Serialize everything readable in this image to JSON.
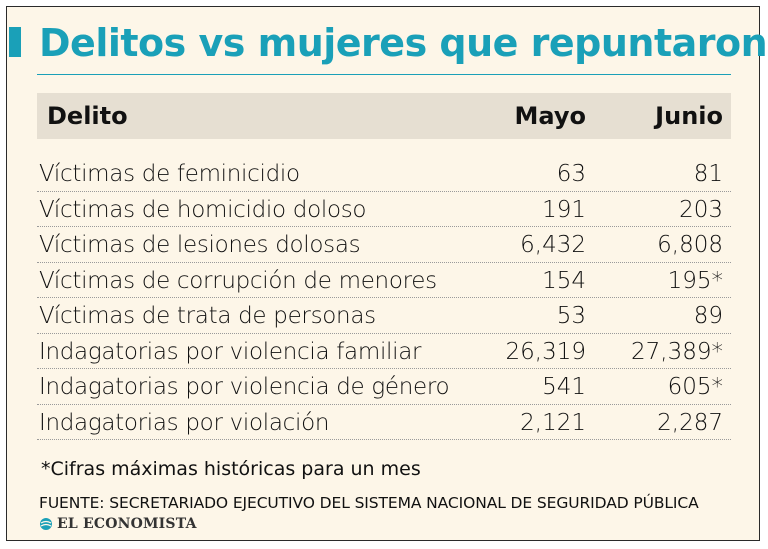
{
  "title": "Delitos vs mujeres que repuntaron",
  "colors": {
    "accent": "#1aa0b8",
    "background": "#fdf6e8",
    "header_bg": "#e6dfd2"
  },
  "table": {
    "headers": {
      "delito": "Delito",
      "mayo": "Mayo",
      "junio": "Junio"
    },
    "rows": [
      {
        "delito": "Víctimas de feminicidio",
        "mayo": "63",
        "junio": "81"
      },
      {
        "delito": "Víctimas de homicidio doloso",
        "mayo": "191",
        "junio": "203"
      },
      {
        "delito": "Víctimas de lesiones dolosas",
        "mayo": "6,432",
        "junio": "6,808"
      },
      {
        "delito": "Víctimas de corrupción de menores",
        "mayo": "154",
        "junio": "195*"
      },
      {
        "delito": "Víctimas de trata de personas",
        "mayo": "53",
        "junio": "89"
      },
      {
        "delito": "Indagatorias por violencia familiar",
        "mayo": "26,319",
        "junio": "27,389*"
      },
      {
        "delito": "Indagatorias por violencia de género",
        "mayo": "541",
        "junio": "605*"
      },
      {
        "delito": "Indagatorias por violación",
        "mayo": "2,121",
        "junio": "2,287"
      }
    ]
  },
  "note": "*Cifras máximas históricas para un mes",
  "source": "FUENTE: SECRETARIADO EJECUTIVO DEL SISTEMA NACIONAL DE SEGURIDAD PÚBLICA",
  "brand": {
    "name": "EL ECONOMISTA",
    "icon": "globe-logo-icon"
  }
}
